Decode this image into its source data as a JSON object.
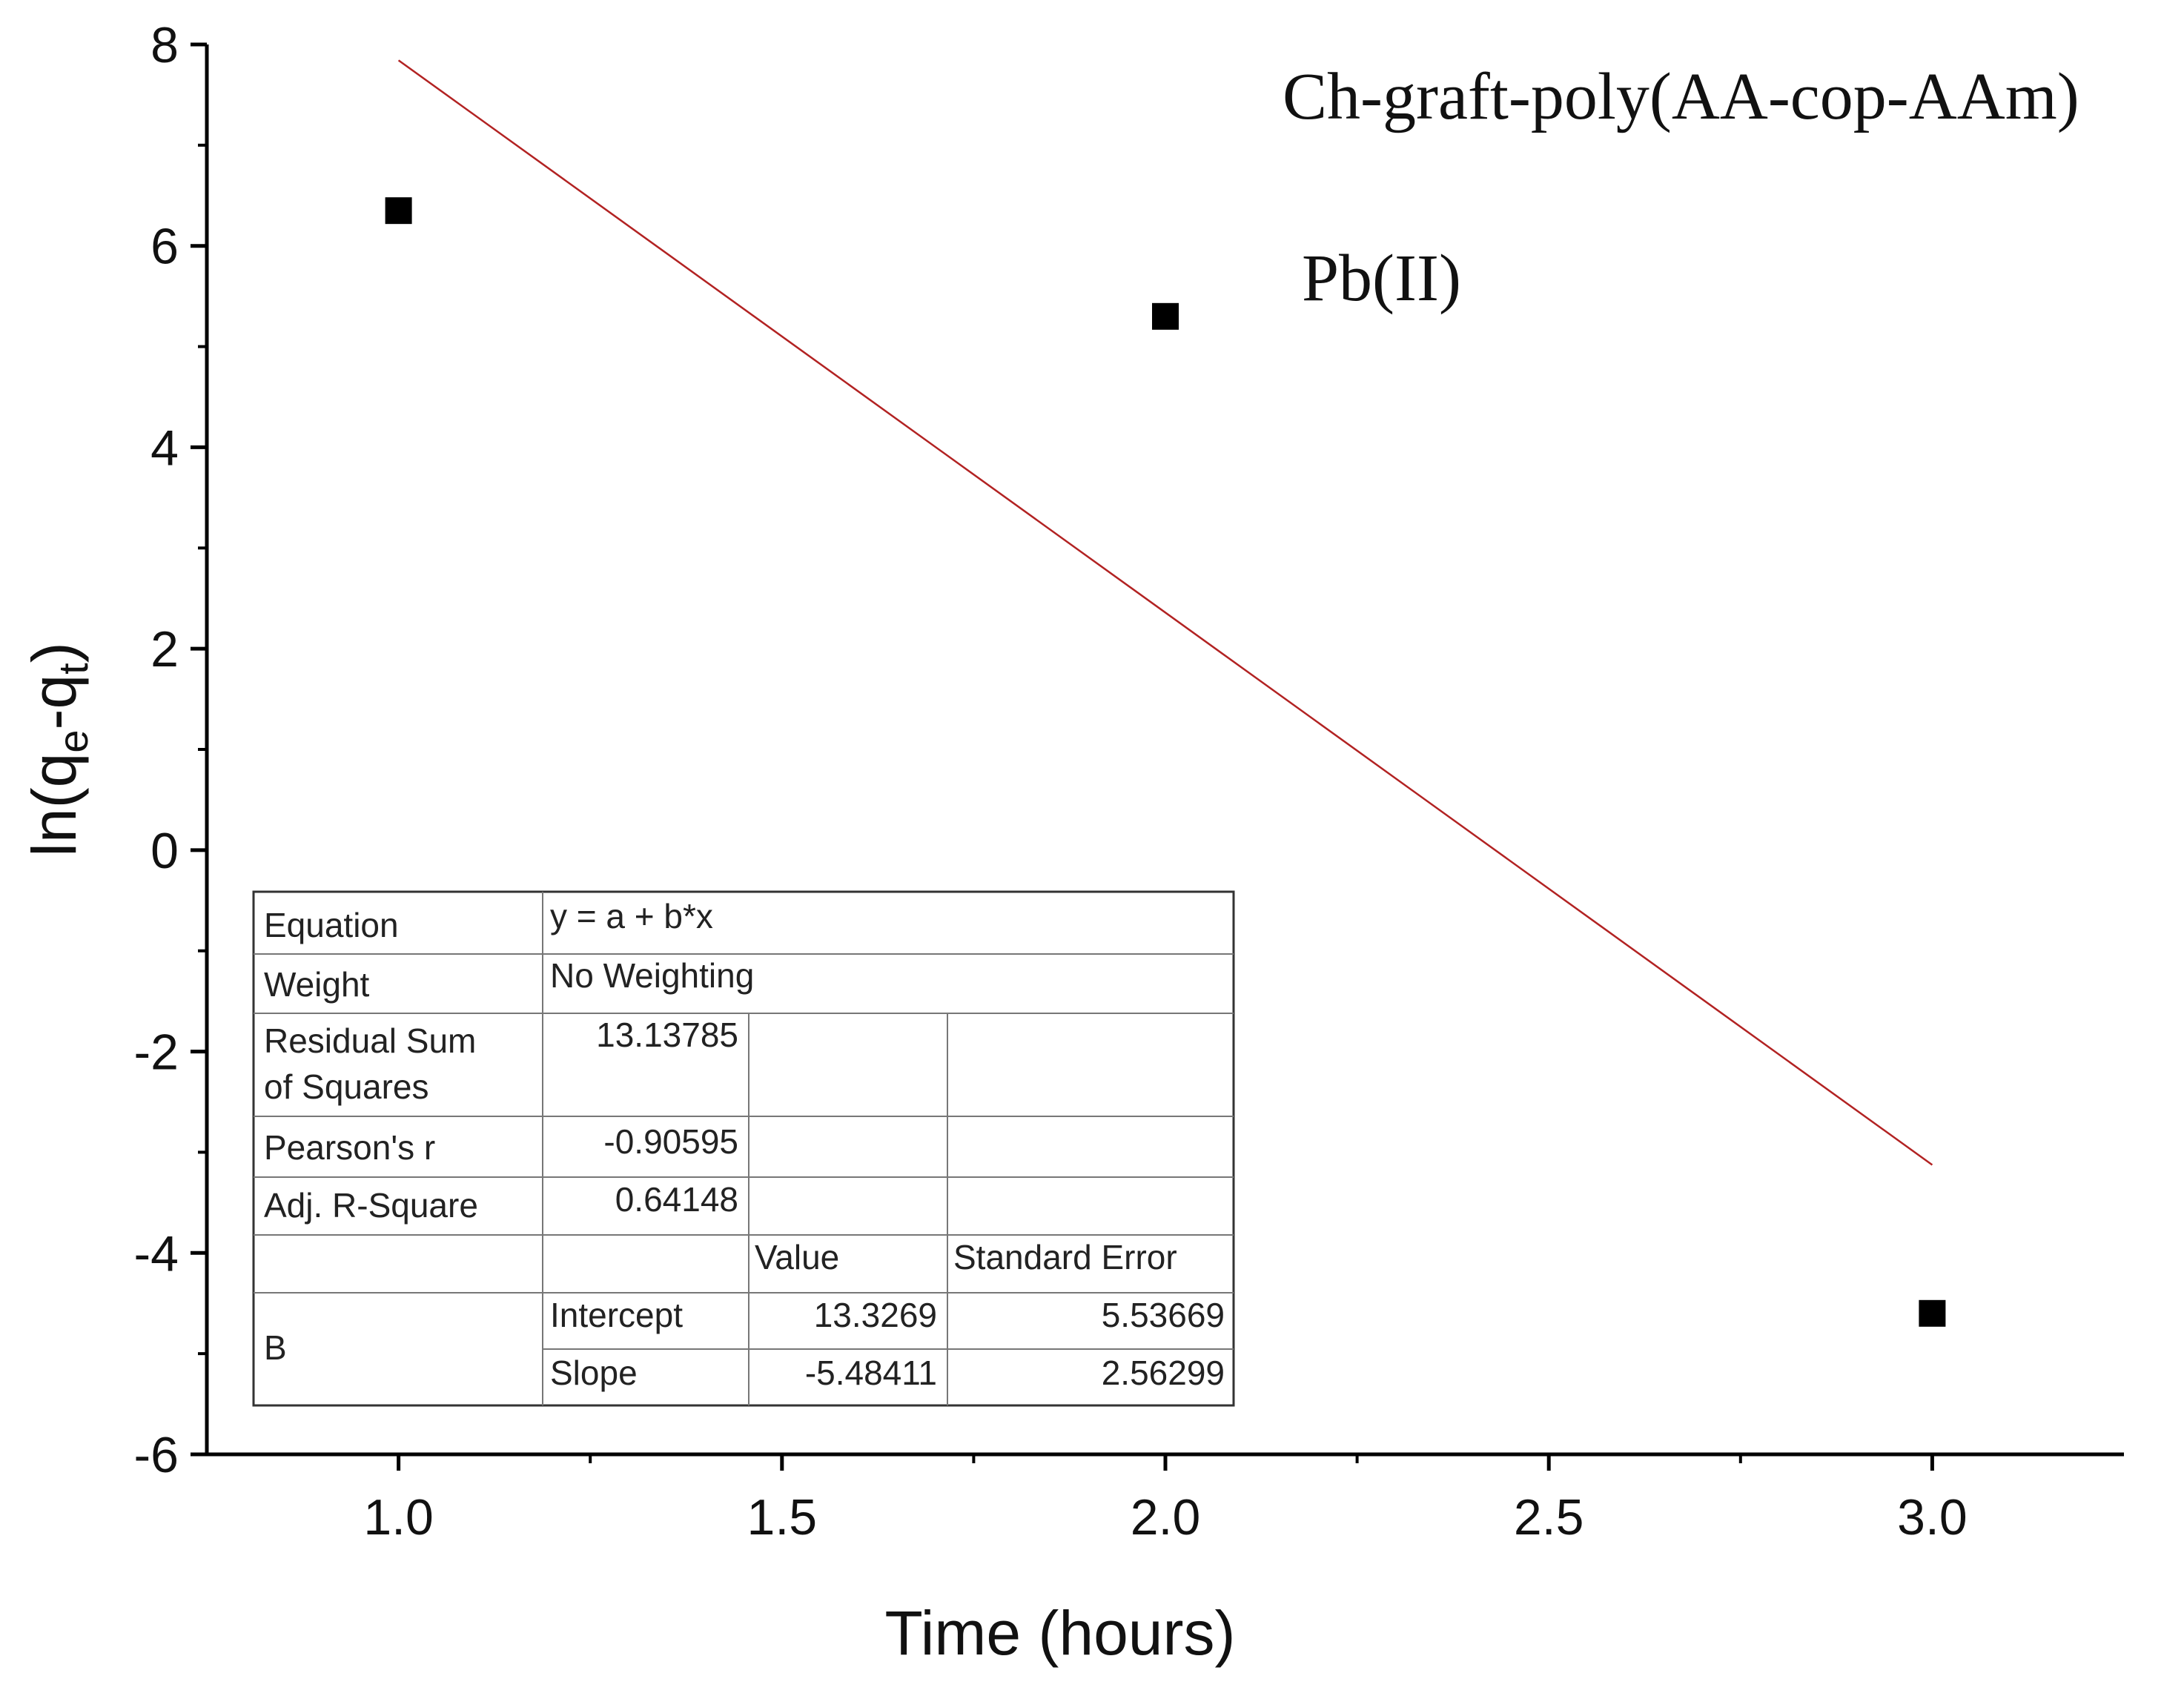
{
  "chart_data": {
    "type": "scatter",
    "xlabel": "Time (hours)",
    "ylabel": {
      "prefix": "ln(q",
      "sub1": "e",
      "middle": "-q",
      "sub2": "t",
      "suffix": ")"
    },
    "xlim": [
      0.75,
      3.25
    ],
    "ylim": [
      -6,
      8
    ],
    "x_ticks": [
      "1.0",
      "1.5",
      "2.0",
      "2.5",
      "3.0"
    ],
    "y_ticks": [
      "8",
      "6",
      "4",
      "2",
      "0",
      "-2",
      "-4",
      "-6"
    ],
    "series": [
      {
        "name": "Pb(II)",
        "marker": "square",
        "x": [
          1.0,
          2.0,
          3.0
        ],
        "y": [
          6.35,
          5.3,
          -4.6
        ]
      }
    ],
    "fit_line": {
      "intercept": 13.3269,
      "slope": -5.48411,
      "x_range": [
        1.0,
        3.0
      ],
      "color": "#b22222"
    },
    "annotations": [
      "Ch-graft-poly(AA-cop-AAm)",
      "Pb(II)"
    ],
    "fit_table": {
      "equation_label": "Equation",
      "equation": "y = a + b*x",
      "weight_label": "Weight",
      "weight": "No Weighting",
      "rss_label_line1": "Residual Sum",
      "rss_label_line2": "of Squares",
      "rss": "13.13785",
      "pearson_label": "Pearson's r",
      "pearson": "-0.90595",
      "adjr2_label": "Adj. R-Square",
      "adjr2": "0.64148",
      "value_header": "Value",
      "stderr_header": "Standard Error",
      "group_label": "B",
      "rows": [
        {
          "name": "Intercept",
          "value": "13.3269",
          "stderr": "5.53669"
        },
        {
          "name": "Slope",
          "value": "-5.48411",
          "stderr": "2.56299"
        }
      ]
    }
  }
}
